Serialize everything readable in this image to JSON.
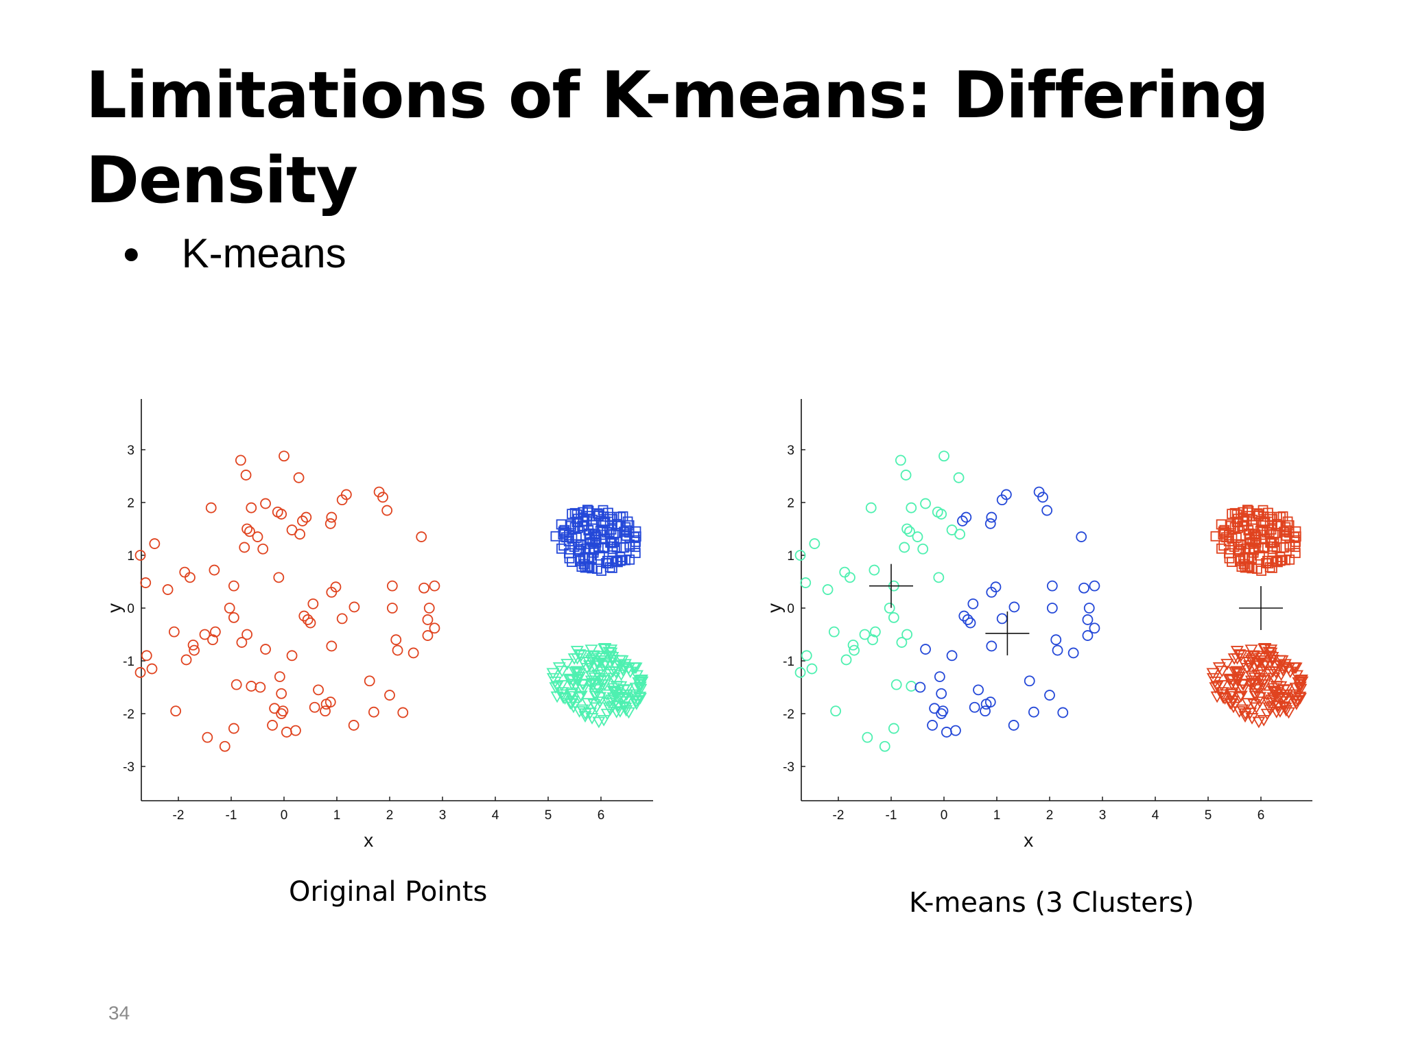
{
  "slide": {
    "title": "Limitations of K-means: Differing Density",
    "bullet": "K-means",
    "page_number": "34"
  },
  "chart_data": [
    {
      "type": "scatter",
      "title": "",
      "caption": "Original Points",
      "xlabel": "x",
      "ylabel": "y",
      "xlim": [
        -2.7,
        7.0
      ],
      "ylim": [
        -3.7,
        3.9
      ],
      "xticks": [
        "-2",
        "-1",
        "0",
        "1",
        "2",
        "3",
        "4",
        "5",
        "6"
      ],
      "yticks": [
        "3",
        "2",
        "1",
        "0",
        "-1",
        "-2",
        "-3"
      ],
      "grid": false,
      "colors": {
        "red": "#e0431f",
        "blue": "#2448d8",
        "green": "#4ef0b0"
      },
      "series": [
        {
          "marker": "circle",
          "color": "red",
          "points": [
            [
              -0.82,
              2.8
            ],
            [
              -0.72,
              2.52
            ],
            [
              0.0,
              2.88
            ],
            [
              0.28,
              2.47
            ],
            [
              -1.38,
              1.9
            ],
            [
              -0.62,
              1.9
            ],
            [
              -0.35,
              1.98
            ],
            [
              -0.12,
              1.82
            ],
            [
              -0.05,
              1.78
            ],
            [
              0.35,
              1.65
            ],
            [
              0.42,
              1.72
            ],
            [
              0.9,
              1.72
            ],
            [
              1.1,
              2.05
            ],
            [
              1.18,
              2.15
            ],
            [
              1.8,
              2.2
            ],
            [
              1.87,
              2.1
            ],
            [
              1.95,
              1.85
            ],
            [
              0.88,
              1.6
            ],
            [
              -0.7,
              1.5
            ],
            [
              -0.65,
              1.45
            ],
            [
              -0.5,
              1.35
            ],
            [
              -0.4,
              1.12
            ],
            [
              -0.75,
              1.15
            ],
            [
              0.15,
              1.48
            ],
            [
              0.3,
              1.4
            ],
            [
              2.6,
              1.35
            ],
            [
              -2.72,
              1.0
            ],
            [
              -2.45,
              1.22
            ],
            [
              -2.62,
              0.48
            ],
            [
              -2.2,
              0.35
            ],
            [
              -1.88,
              0.68
            ],
            [
              -1.78,
              0.58
            ],
            [
              -1.32,
              0.72
            ],
            [
              -0.95,
              0.42
            ],
            [
              -1.03,
              0.0
            ],
            [
              -0.95,
              -0.18
            ],
            [
              -0.7,
              -0.5
            ],
            [
              -1.3,
              -0.45
            ],
            [
              -1.5,
              -0.5
            ],
            [
              -1.35,
              -0.6
            ],
            [
              -1.72,
              -0.7
            ],
            [
              -1.7,
              -0.8
            ],
            [
              -2.08,
              -0.45
            ],
            [
              -1.85,
              -0.98
            ],
            [
              -0.8,
              -0.65
            ],
            [
              -0.35,
              -0.78
            ],
            [
              0.15,
              -0.9
            ],
            [
              -0.1,
              0.58
            ],
            [
              0.38,
              -0.15
            ],
            [
              0.45,
              -0.22
            ],
            [
              0.5,
              -0.28
            ],
            [
              0.55,
              0.08
            ],
            [
              0.9,
              0.3
            ],
            [
              0.98,
              0.4
            ],
            [
              1.1,
              -0.2
            ],
            [
              1.33,
              0.02
            ],
            [
              0.9,
              -0.72
            ],
            [
              2.05,
              0.42
            ],
            [
              2.05,
              0.0
            ],
            [
              2.12,
              -0.6
            ],
            [
              2.15,
              -0.8
            ],
            [
              2.45,
              -0.85
            ],
            [
              2.65,
              0.38
            ],
            [
              2.85,
              0.42
            ],
            [
              2.75,
              0.0
            ],
            [
              2.72,
              -0.22
            ],
            [
              2.72,
              -0.52
            ],
            [
              2.85,
              -0.38
            ],
            [
              -2.6,
              -0.9
            ],
            [
              -2.72,
              -1.22
            ],
            [
              -2.5,
              -1.15
            ],
            [
              -0.9,
              -1.45
            ],
            [
              -0.62,
              -1.48
            ],
            [
              -0.45,
              -1.5
            ],
            [
              -0.08,
              -1.3
            ],
            [
              -0.05,
              -1.62
            ],
            [
              0.65,
              -1.55
            ],
            [
              0.58,
              -1.88
            ],
            [
              0.88,
              -1.78
            ],
            [
              1.62,
              -1.38
            ],
            [
              2.0,
              -1.65
            ],
            [
              -0.18,
              -1.9
            ],
            [
              -0.05,
              -2.0
            ],
            [
              -0.02,
              -1.95
            ],
            [
              0.22,
              -2.32
            ],
            [
              0.05,
              -2.35
            ],
            [
              -0.22,
              -2.22
            ],
            [
              0.78,
              -1.95
            ],
            [
              0.8,
              -1.82
            ],
            [
              1.32,
              -2.22
            ],
            [
              1.7,
              -1.97
            ],
            [
              2.25,
              -1.98
            ],
            [
              -2.05,
              -1.95
            ],
            [
              -1.45,
              -2.45
            ],
            [
              -0.95,
              -2.28
            ],
            [
              -1.12,
              -2.62
            ]
          ]
        },
        {
          "marker": "square",
          "color": "blue",
          "cluster": {
            "cx": 5.92,
            "cy": 1.3,
            "rx": 0.82,
            "ry": 0.6,
            "count": 150
          }
        },
        {
          "marker": "triangle-down",
          "color": "green",
          "cluster": {
            "cx": 5.92,
            "cy": -1.45,
            "rx": 0.88,
            "ry": 0.72,
            "count": 170
          }
        }
      ]
    },
    {
      "type": "scatter",
      "title": "",
      "caption": "K-means (3 Clusters)",
      "xlabel": "x",
      "ylabel": "y",
      "xlim": [
        -2.7,
        7.0
      ],
      "ylim": [
        -3.7,
        3.9
      ],
      "xticks": [
        "-2",
        "-1",
        "0",
        "1",
        "2",
        "3",
        "4",
        "5",
        "6"
      ],
      "yticks": [
        "3",
        "2",
        "1",
        "0",
        "-1",
        "-2",
        "-3"
      ],
      "grid": false,
      "colors": {
        "red": "#e0431f",
        "blue": "#2448d8",
        "green": "#4ef0b0"
      },
      "centroids": [
        [
          -1.0,
          0.42
        ],
        [
          1.2,
          -0.48
        ],
        [
          6.0,
          0.0
        ]
      ],
      "cluster_rule": "circles with x < -0.55 (or x < 0.35 and y > 0.5) are green; remaining circles blue; squares and triangles red"
    }
  ]
}
